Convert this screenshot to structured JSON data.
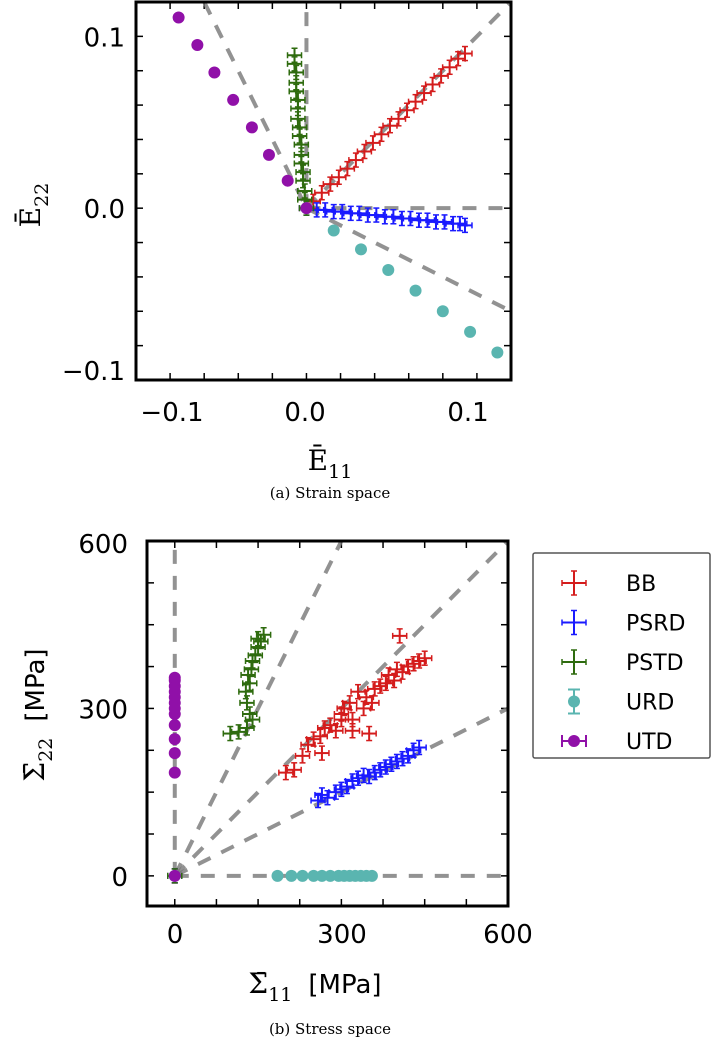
{
  "chart_data": [
    {
      "type": "scatter",
      "caption": "(a) Strain space",
      "xlabel": "Ē",
      "xlabel_sub": "11",
      "ylabel": "Ē",
      "ylabel_sub": "22",
      "xlim": [
        -0.1,
        0.12
      ],
      "ylim": [
        -0.1,
        0.12
      ],
      "xticks": [
        -0.1,
        0.0,
        0.1
      ],
      "xtick_labels": [
        "−0.1",
        "0.0",
        "0.1"
      ],
      "yticks": [
        -0.1,
        0.0,
        0.1
      ],
      "ytick_labels": [
        "−0.1",
        "0.0",
        "0.1"
      ],
      "minor_tick_step": 0.02,
      "reference_lines": [
        {
          "slope": 1,
          "range": [
            0,
            0.12
          ]
        },
        {
          "slope": -0.5,
          "range": [
            0,
            0.12
          ]
        },
        {
          "slope": -2,
          "range": [
            -0.06,
            0
          ]
        },
        {
          "slope": 0,
          "range": [
            0,
            0.12
          ]
        },
        {
          "vertical": true,
          "range": [
            0,
            0.12
          ]
        }
      ],
      "series": [
        {
          "name": "BB",
          "marker": "plus",
          "color": "#d41c1c",
          "x": [
            0.0,
            0.004,
            0.009,
            0.014,
            0.019,
            0.024,
            0.029,
            0.034,
            0.039,
            0.044,
            0.049,
            0.054,
            0.059,
            0.064,
            0.069,
            0.074,
            0.079,
            0.084,
            0.089,
            0.093
          ],
          "y": [
            0.0,
            0.004,
            0.009,
            0.014,
            0.018,
            0.023,
            0.028,
            0.033,
            0.038,
            0.043,
            0.048,
            0.052,
            0.057,
            0.062,
            0.067,
            0.072,
            0.077,
            0.082,
            0.087,
            0.09
          ]
        },
        {
          "name": "PSRD",
          "marker": "plus",
          "color": "#1a1aff",
          "x": [
            0.0,
            0.006,
            0.011,
            0.016,
            0.021,
            0.026,
            0.031,
            0.036,
            0.041,
            0.046,
            0.051,
            0.056,
            0.061,
            0.066,
            0.071,
            0.076,
            0.081,
            0.086,
            0.09,
            0.093
          ],
          "y": [
            0.0,
            -0.001,
            -0.001,
            -0.002,
            -0.002,
            -0.003,
            -0.003,
            -0.004,
            -0.004,
            -0.005,
            -0.005,
            -0.006,
            -0.006,
            -0.007,
            -0.007,
            -0.008,
            -0.008,
            -0.009,
            -0.009,
            -0.01
          ]
        },
        {
          "name": "PSTD",
          "marker": "plus",
          "color": "#2e6b0e",
          "x": [
            0.0,
            -0.001,
            -0.001,
            -0.002,
            -0.002,
            -0.003,
            -0.003,
            -0.003,
            -0.004,
            -0.004,
            -0.005,
            -0.005,
            -0.005,
            -0.006,
            -0.006,
            -0.006,
            -0.007,
            -0.007
          ],
          "y": [
            0.0,
            0.005,
            0.01,
            0.016,
            0.021,
            0.026,
            0.031,
            0.037,
            0.042,
            0.047,
            0.052,
            0.058,
            0.063,
            0.068,
            0.073,
            0.079,
            0.084,
            0.089
          ]
        },
        {
          "name": "URD",
          "marker": "circle",
          "color": "#5ab5b0",
          "x": [
            0.0,
            0.016,
            0.032,
            0.048,
            0.064,
            0.08,
            0.096,
            0.112
          ],
          "y": [
            0.0,
            -0.013,
            -0.024,
            -0.036,
            -0.048,
            -0.06,
            -0.072,
            -0.084
          ]
        },
        {
          "name": "UTD",
          "marker": "circle",
          "color": "#9010a8",
          "x": [
            0.0,
            -0.011,
            -0.022,
            -0.032,
            -0.043,
            -0.054,
            -0.064,
            -0.075
          ],
          "y": [
            0.0,
            0.016,
            0.031,
            0.047,
            0.063,
            0.079,
            0.095,
            0.111
          ]
        }
      ]
    },
    {
      "type": "scatter",
      "caption": "(b) Stress space",
      "xlabel": "Σ̄",
      "xlabel_sub": "11",
      "xlabel_unit": "[MPa]",
      "ylabel": "Σ̄",
      "ylabel_sub": "22",
      "ylabel_unit": "[MPa]",
      "xlim": [
        -50,
        600
      ],
      "ylim": [
        -54,
        600
      ],
      "xticks": [
        0,
        300,
        600
      ],
      "xtick_labels": [
        "0",
        "300",
        "600"
      ],
      "yticks": [
        0,
        300,
        600
      ],
      "ytick_labels": [
        "0",
        "300",
        "600"
      ],
      "minor_tick_step": 75,
      "legend": {
        "position": "right",
        "entries": [
          "BB",
          "PSRD",
          "PSTD",
          "URD",
          "UTD"
        ]
      },
      "reference_lines": [
        {
          "slope": 1,
          "range": [
            0,
            600
          ]
        },
        {
          "slope": 2,
          "range": [
            0,
            300
          ]
        },
        {
          "slope": 0.5,
          "range": [
            0,
            600
          ]
        },
        {
          "slope": 0,
          "range": [
            0,
            600
          ]
        },
        {
          "vertical": true,
          "range": [
            0,
            600
          ]
        }
      ],
      "series": [
        {
          "name": "BB",
          "marker": "plus",
          "color": "#d41c1c",
          "x": [
            0,
            200,
            215,
            230,
            240,
            250,
            262,
            270,
            280,
            290,
            300,
            305,
            315,
            320,
            330,
            340,
            345,
            355,
            360,
            370,
            380,
            385,
            395,
            400,
            410,
            420,
            430,
            440,
            450,
            405,
            320,
            350,
            300,
            265
          ],
          "y": [
            0,
            185,
            190,
            215,
            235,
            245,
            250,
            265,
            270,
            260,
            290,
            300,
            310,
            280,
            330,
            300,
            320,
            310,
            335,
            340,
            345,
            360,
            350,
            370,
            365,
            375,
            380,
            385,
            390,
            430,
            260,
            255,
            280,
            220
          ]
        },
        {
          "name": "PSRD",
          "marker": "plus",
          "color": "#1a1aff",
          "x": [
            0,
            258,
            265,
            275,
            290,
            300,
            310,
            320,
            330,
            340,
            350,
            360,
            370,
            380,
            390,
            400,
            410,
            420,
            430,
            440
          ],
          "y": [
            0,
            135,
            145,
            140,
            150,
            155,
            160,
            170,
            175,
            180,
            178,
            185,
            190,
            195,
            200,
            205,
            210,
            215,
            225,
            230
          ]
        },
        {
          "name": "PSTD",
          "marker": "plus",
          "color": "#2e6b0e",
          "x": [
            0,
            100,
            115,
            130,
            135,
            130,
            128,
            135,
            132,
            138,
            140,
            145,
            150,
            155,
            160,
            150,
            140
          ],
          "y": [
            0,
            255,
            258,
            265,
            290,
            310,
            330,
            345,
            360,
            370,
            385,
            395,
            410,
            420,
            432,
            425,
            280
          ]
        },
        {
          "name": "URD",
          "marker": "circle",
          "color": "#5ab5b0",
          "x": [
            0,
            185,
            210,
            230,
            250,
            265,
            280,
            295,
            305,
            315,
            325,
            335,
            345,
            355
          ],
          "y": [
            0,
            0,
            0,
            0,
            0,
            0,
            0,
            0,
            0,
            0,
            0,
            0,
            0,
            0
          ]
        },
        {
          "name": "UTD",
          "marker": "circle",
          "color": "#9010a8",
          "x": [
            0,
            0,
            0,
            0,
            0,
            0,
            0,
            0,
            0,
            0,
            0,
            0,
            0
          ],
          "y": [
            0,
            185,
            220,
            245,
            270,
            290,
            300,
            310,
            320,
            330,
            340,
            350,
            355
          ]
        }
      ]
    }
  ]
}
